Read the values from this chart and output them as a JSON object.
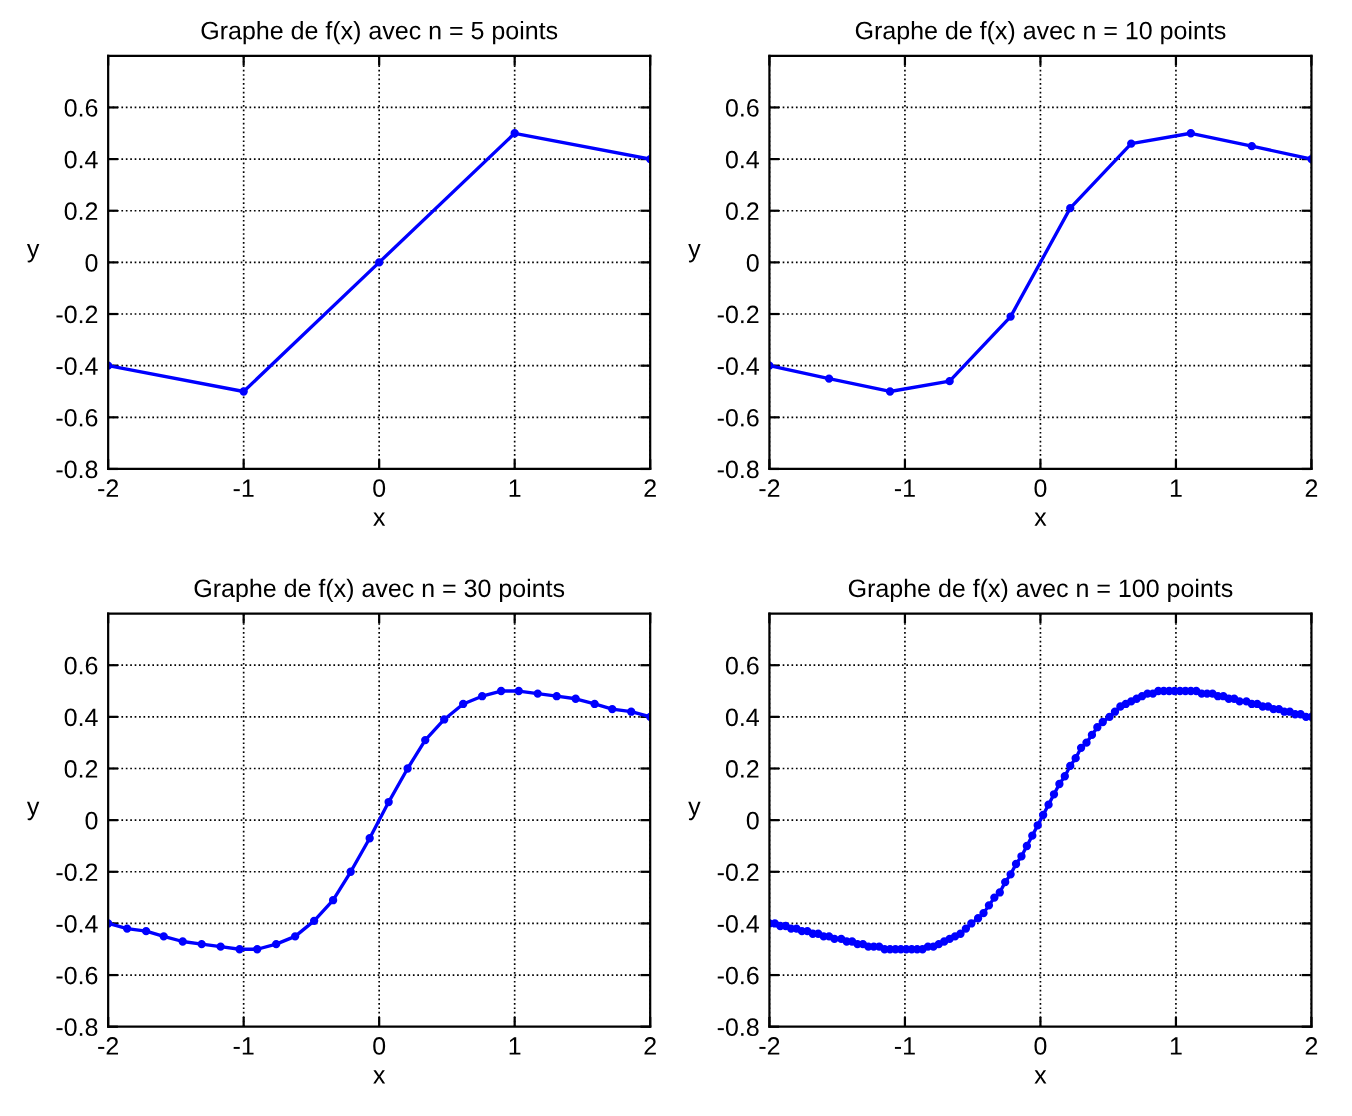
{
  "chart_data": [
    {
      "type": "line",
      "title": "Graphe de f(x) avec n = 5 points",
      "xlabel": "x",
      "ylabel": "y",
      "xlim": [
        -2,
        2
      ],
      "ylim": [
        -0.8,
        0.8
      ],
      "xticks": [
        -2,
        -1,
        0,
        1,
        2
      ],
      "yticks": [
        -0.8,
        -0.6,
        -0.4,
        -0.2,
        0,
        0.2,
        0.4,
        0.6
      ],
      "grid": true,
      "marker": "circle",
      "line_style": "solid",
      "series": [
        {
          "color": "#0000ff",
          "x": [
            -2,
            -1,
            0,
            1,
            2
          ],
          "values": [
            -0.4,
            -0.5,
            0,
            0.5,
            0.4
          ]
        }
      ]
    },
    {
      "type": "line",
      "title": "Graphe de f(x) avec n = 10 points",
      "xlabel": "x",
      "ylabel": "y",
      "xlim": [
        -2,
        2
      ],
      "ylim": [
        -0.8,
        0.8
      ],
      "xticks": [
        -2,
        -1,
        0,
        1,
        2
      ],
      "yticks": [
        -0.8,
        -0.6,
        -0.4,
        -0.2,
        0,
        0.2,
        0.4,
        0.6
      ],
      "grid": true,
      "marker": "circle",
      "line_style": "solid",
      "series": [
        {
          "color": "#0000ff",
          "x": [
            -2,
            -1.56,
            -1.11,
            -0.67,
            -0.22,
            0.22,
            0.67,
            1.11,
            1.56,
            2
          ],
          "values": [
            -0.4,
            -0.45,
            -0.5,
            -0.46,
            -0.21,
            0.21,
            0.46,
            0.5,
            0.45,
            0.4
          ]
        }
      ]
    },
    {
      "type": "line",
      "title": "Graphe de f(x) avec n = 30 points",
      "xlabel": "x",
      "ylabel": "y",
      "xlim": [
        -2,
        2
      ],
      "ylim": [
        -0.8,
        0.8
      ],
      "xticks": [
        -2,
        -1,
        0,
        1,
        2
      ],
      "yticks": [
        -0.8,
        -0.6,
        -0.4,
        -0.2,
        0,
        0.2,
        0.4,
        0.6
      ],
      "grid": true,
      "marker": "circle",
      "line_style": "solid",
      "series": [
        {
          "color": "#0000ff",
          "x": [
            -2,
            -1.86,
            -1.72,
            -1.59,
            -1.45,
            -1.31,
            -1.17,
            -1.03,
            -0.9,
            -0.76,
            -0.62,
            -0.48,
            -0.34,
            -0.21,
            -0.07,
            0.07,
            0.21,
            0.34,
            0.48,
            0.62,
            0.76,
            0.9,
            1.03,
            1.17,
            1.31,
            1.45,
            1.59,
            1.72,
            1.86,
            2
          ],
          "values": [
            -0.4,
            -0.42,
            -0.43,
            -0.45,
            -0.47,
            -0.48,
            -0.49,
            -0.5,
            -0.5,
            -0.48,
            -0.45,
            -0.39,
            -0.31,
            -0.2,
            -0.07,
            0.07,
            0.2,
            0.31,
            0.39,
            0.45,
            0.48,
            0.5,
            0.5,
            0.49,
            0.48,
            0.47,
            0.45,
            0.43,
            0.42,
            0.4
          ]
        }
      ]
    },
    {
      "type": "line",
      "title": "Graphe de f(x) avec n = 100 points",
      "xlabel": "x",
      "ylabel": "y",
      "xlim": [
        -2,
        2
      ],
      "ylim": [
        -0.8,
        0.8
      ],
      "xticks": [
        -2,
        -1,
        0,
        1,
        2
      ],
      "yticks": [
        -0.8,
        -0.6,
        -0.4,
        -0.2,
        0,
        0.2,
        0.4,
        0.6
      ],
      "grid": true,
      "marker": "circle",
      "line_style": "solid",
      "series": [
        {
          "color": "#0000ff",
          "x": [
            -2,
            -1.96,
            -1.92,
            -1.88,
            -1.84,
            -1.8,
            -1.76,
            -1.72,
            -1.68,
            -1.64,
            -1.6,
            -1.56,
            -1.52,
            -1.47,
            -1.43,
            -1.39,
            -1.35,
            -1.31,
            -1.27,
            -1.23,
            -1.19,
            -1.15,
            -1.11,
            -1.07,
            -1.03,
            -0.99,
            -0.95,
            -0.91,
            -0.87,
            -0.83,
            -0.79,
            -0.75,
            -0.71,
            -0.67,
            -0.63,
            -0.59,
            -0.55,
            -0.51,
            -0.46,
            -0.42,
            -0.38,
            -0.34,
            -0.3,
            -0.26,
            -0.22,
            -0.18,
            -0.14,
            -0.1,
            -0.06,
            -0.02,
            0.02,
            0.06,
            0.1,
            0.14,
            0.18,
            0.22,
            0.26,
            0.3,
            0.34,
            0.38,
            0.42,
            0.46,
            0.51,
            0.55,
            0.59,
            0.63,
            0.67,
            0.71,
            0.75,
            0.79,
            0.83,
            0.87,
            0.91,
            0.95,
            0.99,
            1.03,
            1.07,
            1.11,
            1.15,
            1.19,
            1.23,
            1.27,
            1.31,
            1.35,
            1.39,
            1.43,
            1.47,
            1.52,
            1.56,
            1.6,
            1.64,
            1.68,
            1.72,
            1.76,
            1.8,
            1.84,
            1.88,
            1.92,
            1.96,
            2
          ],
          "values": [
            -0.4,
            -0.4,
            -0.41,
            -0.41,
            -0.42,
            -0.42,
            -0.43,
            -0.43,
            -0.44,
            -0.44,
            -0.45,
            -0.45,
            -0.46,
            -0.46,
            -0.47,
            -0.47,
            -0.48,
            -0.48,
            -0.49,
            -0.49,
            -0.49,
            -0.5,
            -0.5,
            -0.5,
            -0.5,
            -0.5,
            -0.5,
            -0.5,
            -0.5,
            -0.49,
            -0.49,
            -0.48,
            -0.47,
            -0.46,
            -0.45,
            -0.44,
            -0.42,
            -0.4,
            -0.38,
            -0.36,
            -0.33,
            -0.3,
            -0.28,
            -0.24,
            -0.21,
            -0.17,
            -0.14,
            -0.1,
            -0.06,
            -0.02,
            0.02,
            0.06,
            0.1,
            0.14,
            0.17,
            0.21,
            0.24,
            0.28,
            0.3,
            0.33,
            0.36,
            0.38,
            0.4,
            0.42,
            0.44,
            0.45,
            0.46,
            0.47,
            0.48,
            0.49,
            0.49,
            0.5,
            0.5,
            0.5,
            0.5,
            0.5,
            0.5,
            0.5,
            0.5,
            0.49,
            0.49,
            0.49,
            0.48,
            0.48,
            0.47,
            0.47,
            0.46,
            0.46,
            0.45,
            0.45,
            0.44,
            0.44,
            0.43,
            0.43,
            0.42,
            0.42,
            0.41,
            0.41,
            0.4,
            0.4
          ]
        }
      ]
    }
  ]
}
